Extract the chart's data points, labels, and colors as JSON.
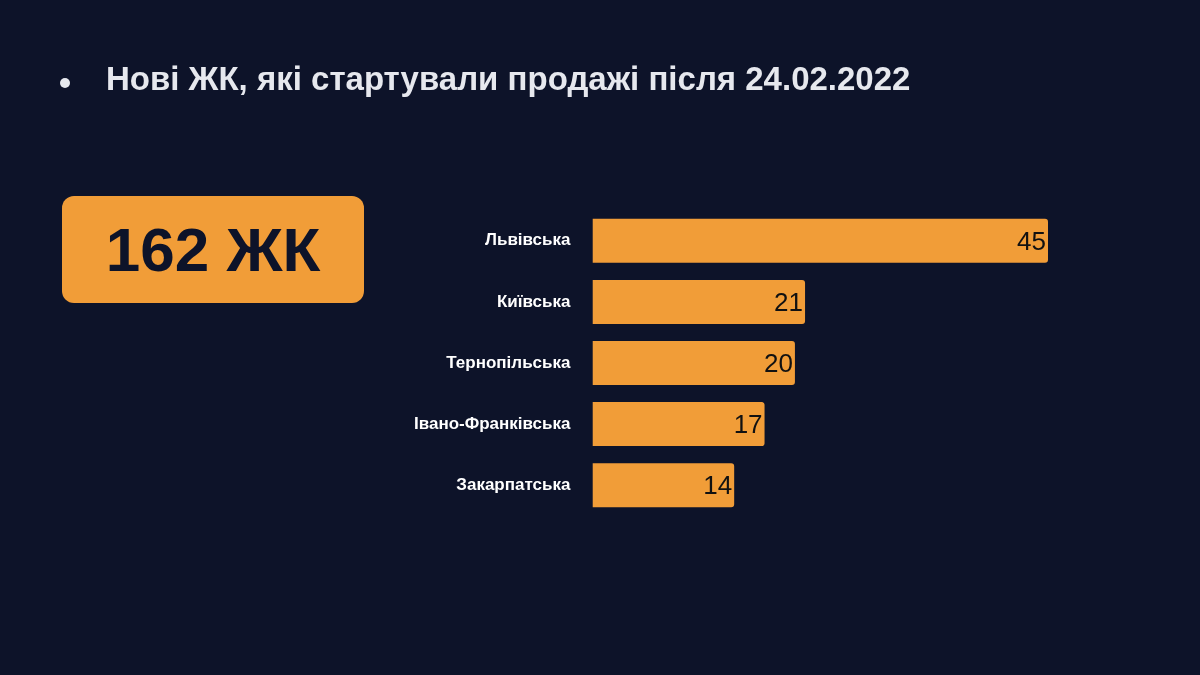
{
  "chart_data": {
    "type": "bar",
    "orientation": "horizontal",
    "title": "Нові ЖК, які стартували продажі після 24.02.2022",
    "categories": [
      "Львівська",
      "Київська",
      "Тернопільська",
      "Івано-Франківська",
      "Закарпатська"
    ],
    "values": [
      45,
      21,
      20,
      17,
      14
    ],
    "color": "#f19d38",
    "data_labels": true,
    "legend": false,
    "annotations": [
      "162 ЖК"
    ]
  }
}
